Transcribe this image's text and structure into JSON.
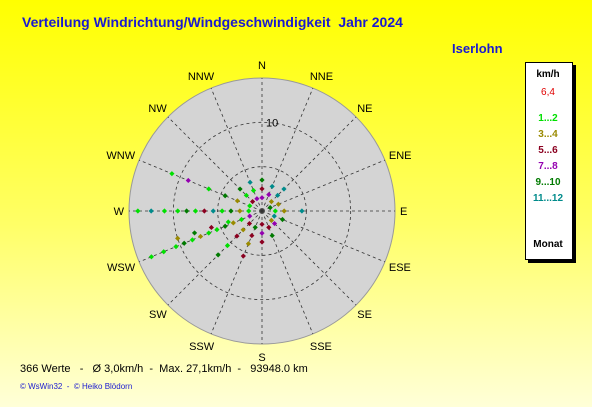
{
  "header": {
    "title": "Verteilung Windrichtung/Windgeschwindigkeit  Jahr 2024",
    "location": "Iserlohn"
  },
  "legend": {
    "unit": "km/h",
    "max_value": "6,4",
    "items": [
      {
        "label": "1...2",
        "color": "#00e000"
      },
      {
        "label": "3...4",
        "color": "#9a8a00"
      },
      {
        "label": "5...6",
        "color": "#8b0020"
      },
      {
        "label": "7...8",
        "color": "#9400b0"
      },
      {
        "label": "9...10",
        "color": "#007a00"
      },
      {
        "label": "11...12",
        "color": "#008b8b"
      }
    ],
    "footer": "Monat",
    "max_color": "#e00000"
  },
  "footer": {
    "stats": "366 Werte   -   Ø 3,0km/h  -  Max. 27,1km/h  -   93948.0 km",
    "credits": "© WsWin32  -  © Heiko Blödorn"
  },
  "chart_data": {
    "type": "polar-scatter",
    "ring_label": "10",
    "rmax": 15,
    "rings": [
      5,
      10,
      15
    ],
    "directions": [
      "N",
      "NNE",
      "NE",
      "ENE",
      "E",
      "ESE",
      "SE",
      "SSE",
      "S",
      "SSW",
      "SW",
      "WSW",
      "W",
      "WNW",
      "NW",
      "NNW"
    ],
    "background_color": "#d4d4d4",
    "points": [
      {
        "d": 0,
        "r": 1.5,
        "c": 3
      },
      {
        "d": 0,
        "r": 2.5,
        "c": 2
      },
      {
        "d": 0,
        "r": 3.5,
        "c": 4
      },
      {
        "d": 22.5,
        "r": 2.0,
        "c": 3
      },
      {
        "d": 22.5,
        "r": 3.0,
        "c": 5
      },
      {
        "d": 45,
        "r": 1.5,
        "c": 1
      },
      {
        "d": 45,
        "r": 2.5,
        "c": 5
      },
      {
        "d": 45,
        "r": 3.5,
        "c": 5
      },
      {
        "d": 67.5,
        "r": 1.0,
        "c": 4
      },
      {
        "d": 67.5,
        "r": 2.0,
        "c": 1
      },
      {
        "d": 90,
        "r": 1.5,
        "c": 0
      },
      {
        "d": 90,
        "r": 2.5,
        "c": 1
      },
      {
        "d": 90,
        "r": 4.5,
        "c": 5
      },
      {
        "d": 112.5,
        "r": 1.5,
        "c": 5
      },
      {
        "d": 112.5,
        "r": 2.5,
        "c": 4
      },
      {
        "d": 135,
        "r": 1.5,
        "c": 1
      },
      {
        "d": 135,
        "r": 2.0,
        "c": 3
      },
      {
        "d": 157.5,
        "r": 2.0,
        "c": 2
      },
      {
        "d": 157.5,
        "r": 3.0,
        "c": 4
      },
      {
        "d": 180,
        "r": 1.5,
        "c": 2
      },
      {
        "d": 180,
        "r": 2.5,
        "c": 3
      },
      {
        "d": 180,
        "r": 3.5,
        "c": 2
      },
      {
        "d": 202.5,
        "r": 2.0,
        "c": 4
      },
      {
        "d": 202.5,
        "r": 3.0,
        "c": 2
      },
      {
        "d": 202.5,
        "r": 4.0,
        "c": 1
      },
      {
        "d": 202.5,
        "r": 5.5,
        "c": 2
      },
      {
        "d": 225,
        "r": 2.0,
        "c": 2
      },
      {
        "d": 225,
        "r": 3.0,
        "c": 1
      },
      {
        "d": 225,
        "r": 4.0,
        "c": 2
      },
      {
        "d": 225,
        "r": 5.5,
        "c": 0
      },
      {
        "d": 225,
        "r": 7.0,
        "c": 4
      },
      {
        "d": 247.5,
        "r": 1.5,
        "c": 3
      },
      {
        "d": 247.5,
        "r": 2.5,
        "c": 0
      },
      {
        "d": 247.5,
        "r": 3.5,
        "c": 1
      },
      {
        "d": 247.5,
        "r": 4.5,
        "c": 4
      },
      {
        "d": 247.5,
        "r": 5.5,
        "c": 0
      },
      {
        "d": 247.5,
        "r": 6.5,
        "c": 0
      },
      {
        "d": 247.5,
        "r": 7.5,
        "c": 1
      },
      {
        "d": 247.5,
        "r": 8.5,
        "c": 0
      },
      {
        "d": 247.5,
        "r": 9.5,
        "c": 4
      },
      {
        "d": 247.5,
        "r": 10.5,
        "c": 0
      },
      {
        "d": 247.5,
        "r": 12.0,
        "c": 0
      },
      {
        "d": 247.5,
        "r": 13.5,
        "c": 0
      },
      {
        "d": 252,
        "r": 4.0,
        "c": 0
      },
      {
        "d": 252,
        "r": 6.0,
        "c": 2
      },
      {
        "d": 252,
        "r": 8.0,
        "c": 4
      },
      {
        "d": 252,
        "r": 10.0,
        "c": 1
      },
      {
        "d": 270,
        "r": 1.5,
        "c": 0
      },
      {
        "d": 270,
        "r": 2.5,
        "c": 1
      },
      {
        "d": 270,
        "r": 3.5,
        "c": 4
      },
      {
        "d": 270,
        "r": 4.5,
        "c": 0
      },
      {
        "d": 270,
        "r": 5.5,
        "c": 5
      },
      {
        "d": 270,
        "r": 6.5,
        "c": 2
      },
      {
        "d": 270,
        "r": 7.5,
        "c": 0
      },
      {
        "d": 270,
        "r": 8.5,
        "c": 4
      },
      {
        "d": 270,
        "r": 9.5,
        "c": 0
      },
      {
        "d": 270,
        "r": 11.0,
        "c": 0
      },
      {
        "d": 270,
        "r": 12.5,
        "c": 5
      },
      {
        "d": 270,
        "r": 14.0,
        "c": 0
      },
      {
        "d": 292.5,
        "r": 1.5,
        "c": 0
      },
      {
        "d": 292.5,
        "r": 3.0,
        "c": 1
      },
      {
        "d": 292.5,
        "r": 4.5,
        "c": 4
      },
      {
        "d": 292.5,
        "r": 6.5,
        "c": 0
      },
      {
        "d": 292.5,
        "r": 9.0,
        "c": 3
      },
      {
        "d": 292.5,
        "r": 11.0,
        "c": 0
      },
      {
        "d": 315,
        "r": 1.5,
        "c": 2
      },
      {
        "d": 315,
        "r": 2.5,
        "c": 0
      },
      {
        "d": 315,
        "r": 3.5,
        "c": 4
      },
      {
        "d": 337.5,
        "r": 1.5,
        "c": 3
      },
      {
        "d": 337.5,
        "r": 2.5,
        "c": 0
      },
      {
        "d": 337.5,
        "r": 3.5,
        "c": 5
      }
    ]
  }
}
